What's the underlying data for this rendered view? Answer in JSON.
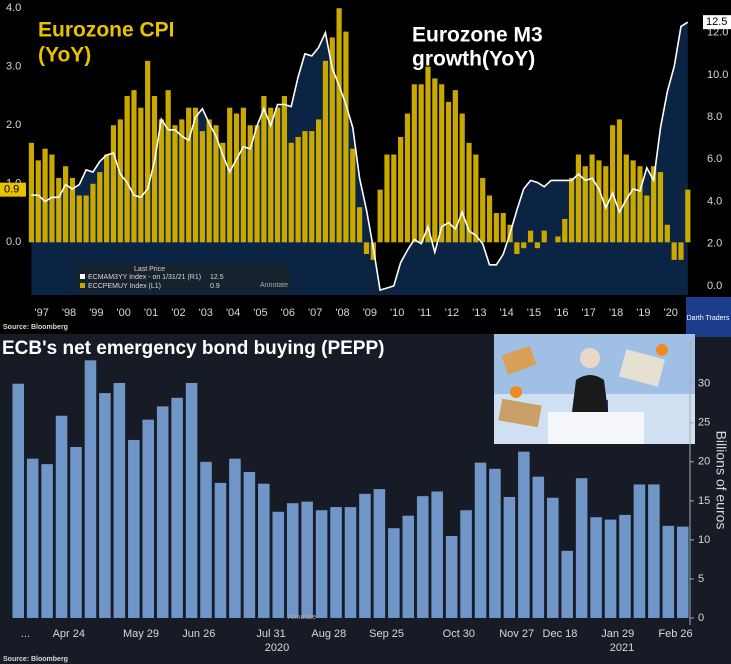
{
  "chart_data": [
    {
      "type": "combo",
      "annotations": [
        "Eurozone CPI",
        "(YoY)",
        "Eurozone M3",
        "growth(YoY)"
      ],
      "legend_heading": "Last Price",
      "annotate_label": "Annotate",
      "source": "Source: Bloomberg",
      "x": [
        1997.125,
        1997.375,
        1997.625,
        1997.875,
        1998.125,
        1998.375,
        1998.625,
        1998.875,
        1999.125,
        1999.375,
        1999.625,
        1999.875,
        2000.125,
        2000.375,
        2000.625,
        2000.875,
        2001.125,
        2001.375,
        2001.625,
        2001.875,
        2002.125,
        2002.375,
        2002.625,
        2002.875,
        2003.125,
        2003.375,
        2003.625,
        2003.875,
        2004.125,
        2004.375,
        2004.625,
        2004.875,
        2005.125,
        2005.375,
        2005.625,
        2005.875,
        2006.125,
        2006.375,
        2006.625,
        2006.875,
        2007.125,
        2007.375,
        2007.625,
        2007.875,
        2008.125,
        2008.375,
        2008.625,
        2008.875,
        2009.125,
        2009.375,
        2009.625,
        2009.875,
        2010.125,
        2010.375,
        2010.625,
        2010.875,
        2011.125,
        2011.375,
        2011.625,
        2011.875,
        2012.125,
        2012.375,
        2012.625,
        2012.875,
        2013.125,
        2013.375,
        2013.625,
        2013.875,
        2014.125,
        2014.375,
        2014.625,
        2014.875,
        2015.125,
        2015.375,
        2015.625,
        2015.875,
        2016.125,
        2016.375,
        2016.625,
        2016.875,
        2017.125,
        2017.375,
        2017.625,
        2017.875,
        2018.125,
        2018.375,
        2018.625,
        2018.875,
        2019.125,
        2019.375,
        2019.625,
        2019.875,
        2020.125,
        2020.375,
        2020.625,
        2020.875,
        2021.125
      ],
      "series": [
        {
          "name": "ECMAM3YY Index - on 1/31/21 (R1)",
          "color": "#ffffff",
          "fill": "#0c2444",
          "axis": "y2",
          "values": [
            4.3,
            4.3,
            4.0,
            4.2,
            4.2,
            4.8,
            4.6,
            4.8,
            5.5,
            5.4,
            5.9,
            6.2,
            6.3,
            5.3,
            4.9,
            4.3,
            4.2,
            4.6,
            5.9,
            7.9,
            7.4,
            7.4,
            7.1,
            6.9,
            8.0,
            8.4,
            7.7,
            7.1,
            6.2,
            5.4,
            6.0,
            6.6,
            6.5,
            7.6,
            8.4,
            7.6,
            8.6,
            8.6,
            8.5,
            9.9,
            11.0,
            10.9,
            11.3,
            12.0,
            10.3,
            9.5,
            8.6,
            7.5,
            5.1,
            3.6,
            1.8,
            -0.2,
            -0.1,
            0.0,
            1.1,
            1.7,
            2.2,
            2.0,
            2.8,
            1.6,
            2.8,
            3.0,
            2.7,
            3.5,
            2.6,
            2.4,
            2.0,
            1.0,
            1.0,
            1.5,
            2.5,
            3.6,
            4.6,
            5.0,
            4.9,
            4.7,
            5.0,
            5.0,
            5.0,
            5.0,
            5.3,
            5.0,
            5.1,
            4.6,
            3.7,
            4.4,
            3.5,
            4.1,
            4.6,
            4.5,
            5.6,
            5.0,
            7.5,
            9.2,
            10.4,
            12.3,
            12.5
          ]
        },
        {
          "name": "ECCPEMUY Index (L1)",
          "color": "#c9a800",
          "axis": "y",
          "values": [
            1.7,
            1.4,
            1.6,
            1.5,
            1.1,
            1.3,
            1.1,
            0.8,
            0.8,
            1.0,
            1.2,
            1.5,
            2.0,
            2.1,
            2.5,
            2.6,
            2.3,
            3.1,
            2.5,
            2.1,
            2.6,
            2.0,
            2.1,
            2.3,
            2.3,
            1.9,
            2.1,
            2.0,
            1.7,
            2.3,
            2.2,
            2.3,
            2.0,
            2.0,
            2.5,
            2.3,
            2.3,
            2.5,
            1.7,
            1.8,
            1.9,
            1.9,
            2.1,
            3.1,
            3.5,
            4.0,
            3.6,
            1.6,
            0.6,
            -0.2,
            -0.3,
            0.9,
            1.5,
            1.5,
            1.8,
            2.2,
            2.7,
            2.7,
            3.0,
            2.8,
            2.7,
            2.4,
            2.6,
            2.2,
            1.7,
            1.5,
            1.1,
            0.8,
            0.5,
            0.5,
            0.3,
            -0.2,
            -0.1,
            0.2,
            -0.1,
            0.2,
            0.0,
            0.1,
            0.4,
            1.1,
            1.5,
            1.3,
            1.5,
            1.4,
            1.3,
            2.0,
            2.1,
            1.5,
            1.4,
            1.3,
            0.8,
            1.3,
            1.2,
            0.3,
            -0.3,
            -0.3,
            0.9
          ]
        }
      ],
      "xlim": [
        1997.0,
        2021.57
      ],
      "xticks": [
        {
          "value": 1997.5,
          "label": "'97"
        },
        {
          "value": 1998.5,
          "label": "'98"
        },
        {
          "value": 1999.5,
          "label": "'99"
        },
        {
          "value": 2000.5,
          "label": "'00"
        },
        {
          "value": 2001.5,
          "label": "'01"
        },
        {
          "value": 2002.5,
          "label": "'02"
        },
        {
          "value": 2003.5,
          "label": "'03"
        },
        {
          "value": 2004.5,
          "label": "'04"
        },
        {
          "value": 2005.5,
          "label": "'05"
        },
        {
          "value": 2006.5,
          "label": "'06"
        },
        {
          "value": 2007.5,
          "label": "'07"
        },
        {
          "value": 2008.5,
          "label": "'08"
        },
        {
          "value": 2009.5,
          "label": "'09"
        },
        {
          "value": 2010.5,
          "label": "'10"
        },
        {
          "value": 2011.5,
          "label": "'11"
        },
        {
          "value": 2012.5,
          "label": "'12"
        },
        {
          "value": 2013.5,
          "label": "'13"
        },
        {
          "value": 2014.5,
          "label": "'14"
        },
        {
          "value": 2015.5,
          "label": "'15"
        },
        {
          "value": 2016.5,
          "label": "'16"
        },
        {
          "value": 2017.5,
          "label": "'17"
        },
        {
          "value": 2018.5,
          "label": "'18"
        },
        {
          "value": 2019.5,
          "label": "'19"
        },
        {
          "value": 2020.5,
          "label": "'20"
        }
      ],
      "ylim": [
        -0.9,
        4.14
      ],
      "yticks": [
        {
          "value": 0,
          "label": "0.0"
        },
        {
          "value": 1,
          "label": "1.0"
        },
        {
          "value": 2,
          "label": "2.0"
        },
        {
          "value": 3,
          "label": "3.0"
        },
        {
          "value": 4,
          "label": "4.0"
        }
      ],
      "y2lim": [
        -0.43,
        13.55
      ],
      "y2ticks": [
        {
          "value": 0,
          "label": "0.0"
        },
        {
          "value": 2,
          "label": "2.0"
        },
        {
          "value": 4,
          "label": "4.0"
        },
        {
          "value": 6,
          "label": "6.0"
        },
        {
          "value": 8,
          "label": "8.0"
        },
        {
          "value": 10,
          "label": "10.0"
        },
        {
          "value": 12,
          "label": "12.0"
        }
      ],
      "grid": false
    },
    {
      "type": "bar",
      "title": "ECB's net emergency bond buying (PEPP)",
      "y_label": "Billions of euros",
      "annotate_label": "Annotate",
      "source": "Source: Bloomberg",
      "year_labels": [
        "2020",
        "2021"
      ],
      "color": "#7096c8",
      "categories": [
        "...",
        null,
        null,
        "Apr 24",
        null,
        null,
        null,
        null,
        "May 29",
        null,
        null,
        null,
        "Jun 26",
        null,
        null,
        null,
        null,
        "Jul 31",
        null,
        null,
        null,
        "Aug 28",
        null,
        null,
        null,
        "Sep 25",
        null,
        null,
        null,
        null,
        "Oct 30",
        null,
        null,
        null,
        "Nov 27",
        null,
        null,
        "Dec 18",
        null,
        null,
        null,
        "Jan 29",
        null,
        null,
        null,
        "Feb 26",
        null
      ],
      "values": [
        30.0,
        20.4,
        19.7,
        25.9,
        21.9,
        33.0,
        28.8,
        30.1,
        22.8,
        25.4,
        27.1,
        28.2,
        30.1,
        20.0,
        17.3,
        20.4,
        18.7,
        17.2,
        13.6,
        14.7,
        14.9,
        13.8,
        14.2,
        14.2,
        15.9,
        16.5,
        11.5,
        13.1,
        15.6,
        16.2,
        10.5,
        13.8,
        19.9,
        19.1,
        15.5,
        21.3,
        18.1,
        15.4,
        8.6,
        17.9,
        12.9,
        12.6,
        13.2,
        17.1,
        17.1,
        11.8,
        11.7
      ],
      "ylim": [
        -0.9,
        35.6
      ],
      "yticks": [
        0,
        5,
        10,
        15,
        20,
        25,
        30
      ],
      "grid": false
    }
  ],
  "watermark": "Darth Traders"
}
